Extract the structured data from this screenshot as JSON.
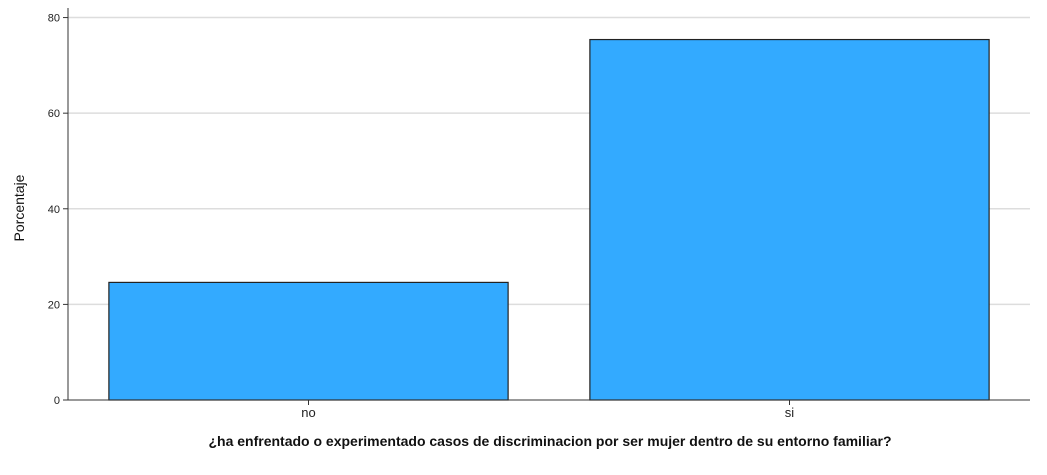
{
  "chart_data": {
    "type": "bar",
    "categories": [
      "no",
      "si"
    ],
    "values": [
      24.6,
      75.4
    ],
    "ylabel": "Porcentaje",
    "xlabel": "¿ha enfrentado o experimentado casos de discriminacion por ser mujer dentro de su entorno familiar?",
    "ylim": [
      0,
      82
    ],
    "yticks": [
      "0",
      "20",
      "40",
      "60",
      "80"
    ],
    "grid": true,
    "bar_color": "#33aaff",
    "bar_edge_color": "#222222",
    "grid_color": "#dddddd"
  }
}
